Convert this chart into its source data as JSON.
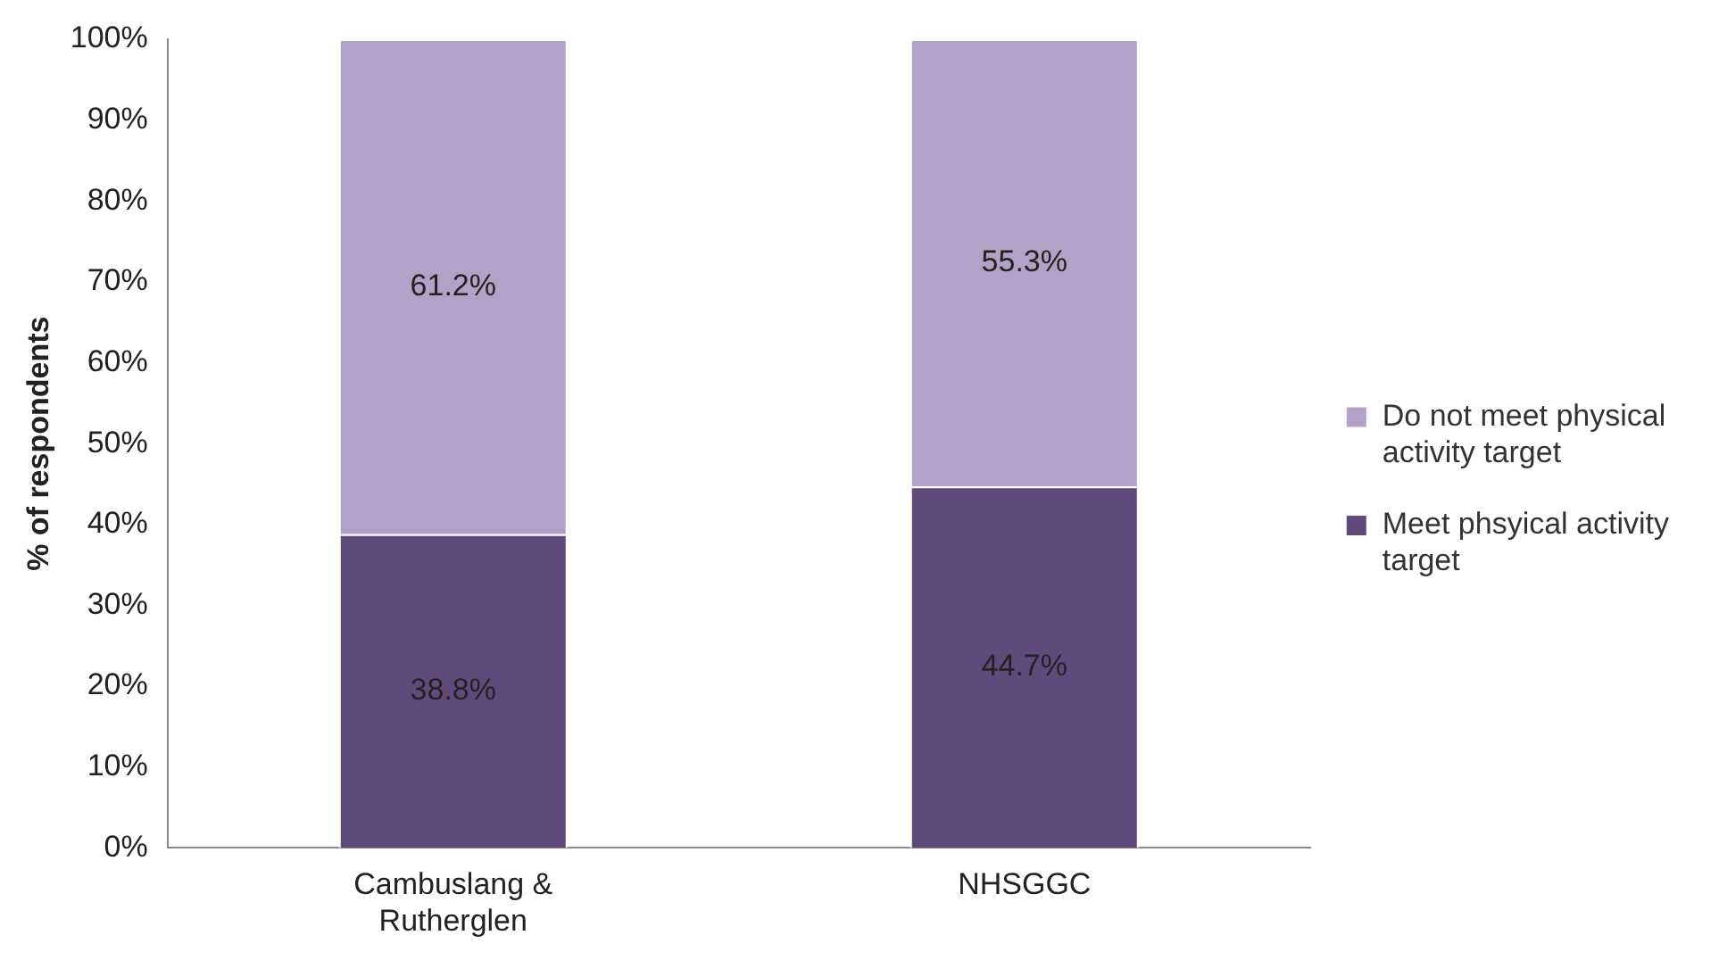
{
  "chart_data": {
    "type": "bar",
    "stacked": true,
    "ylabel": "% of respondents",
    "categories": [
      "Cambuslang & Rutherglen",
      "NHSGGC"
    ],
    "series": [
      {
        "name": "Meet phsyical activity target",
        "color": "#604a7b",
        "values": [
          38.8,
          44.7
        ],
        "value_labels": [
          "38.8%",
          "44.7%"
        ]
      },
      {
        "name": "Do not meet physical activity target",
        "color": "#b3a2c7",
        "values": [
          61.2,
          55.3
        ],
        "value_labels": [
          "61.2%",
          "55.3%"
        ]
      }
    ],
    "ylim": [
      0,
      100
    ],
    "yticks": [
      {
        "value": 0,
        "label": "0%"
      },
      {
        "value": 10,
        "label": "10%"
      },
      {
        "value": 20,
        "label": "20%"
      },
      {
        "value": 30,
        "label": "30%"
      },
      {
        "value": 40,
        "label": "40%"
      },
      {
        "value": 50,
        "label": "50%"
      },
      {
        "value": 60,
        "label": "60%"
      },
      {
        "value": 70,
        "label": "70%"
      },
      {
        "value": 80,
        "label": "80%"
      },
      {
        "value": 90,
        "label": "90%"
      },
      {
        "value": 100,
        "label": "100%"
      }
    ],
    "grid": false,
    "legend": "right"
  }
}
